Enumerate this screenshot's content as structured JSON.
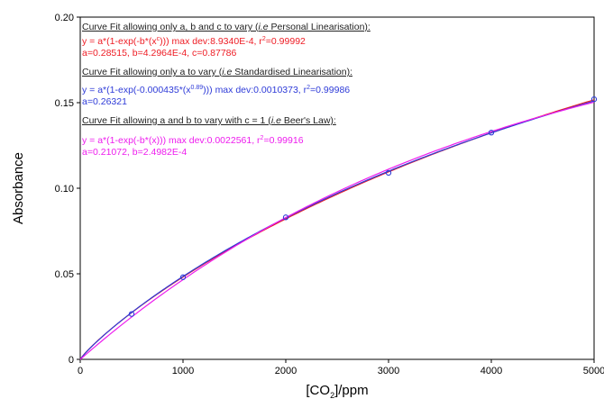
{
  "chart_data": {
    "type": "scatter",
    "xlabel_main": "[CO",
    "xlabel_sub": "2",
    "xlabel_tail": "]/ppm",
    "ylabel": "Absorbance",
    "xlim": [
      0,
      5000
    ],
    "ylim": [
      0,
      0.2
    ],
    "xticks": [
      0,
      1000,
      2000,
      3000,
      4000,
      5000
    ],
    "yticks": [
      "0",
      "0.05",
      "0.10",
      "0.15",
      "0.20"
    ],
    "ytick_values": [
      0,
      0.05,
      0.1,
      0.15,
      0.2
    ],
    "grid": false,
    "points": {
      "x": [
        0,
        500,
        1000,
        2000,
        3000,
        4000,
        5000
      ],
      "y": [
        0,
        0.0265,
        0.048,
        0.083,
        0.109,
        0.1325,
        0.152
      ],
      "color": "#2e3bd8"
    },
    "series": [
      {
        "model": "personal",
        "a": 0.28515,
        "b": 0.00042964,
        "c": 0.87786,
        "color": "#ee1c24"
      },
      {
        "model": "standardised",
        "a": 0.26321,
        "b": 0.000435,
        "c": 0.89,
        "color": "#2e3bd8"
      },
      {
        "model": "beer",
        "a": 0.21072,
        "b": 0.00024982,
        "c": 1,
        "color": "#ee1cee"
      }
    ],
    "annotations": {
      "h1a": "Curve Fit allowing only a, b and c to vary (",
      "h1b": "i.e",
      "h1c": " Personal Linearisation):",
      "r1a": "y = a*(1-exp(-b*(x",
      "r1b": "c",
      "r1c": "))) max dev:8.9340E-4, r",
      "r1d": "2",
      "r1e": "=0.99992",
      "r2": "a=0.28515, b=4.2964E-4, c=0.87786",
      "h2a": "Curve Fit allowing only a to vary (",
      "h2b": "i.e",
      "h2c": " Standardised Linearisation):",
      "b1a": "y = a*(1-exp(-0.000435*(x",
      "b1b": "0.89",
      "b1c": "))) max dev:0.0010373, r",
      "b1d": "2",
      "b1e": "=0.99986",
      "b2": "a=0.26321",
      "h3a": "Curve Fit allowing a and b to vary with c = 1 (",
      "h3b": "i.e",
      "h3c": " Beer's Law):",
      "m1a": "y = a*(1-exp(-b*(x))) max dev:0.0022561, r",
      "m1b": "2",
      "m1c": "=0.99916",
      "m2": "a=0.21072, b=2.4982E-4"
    }
  }
}
